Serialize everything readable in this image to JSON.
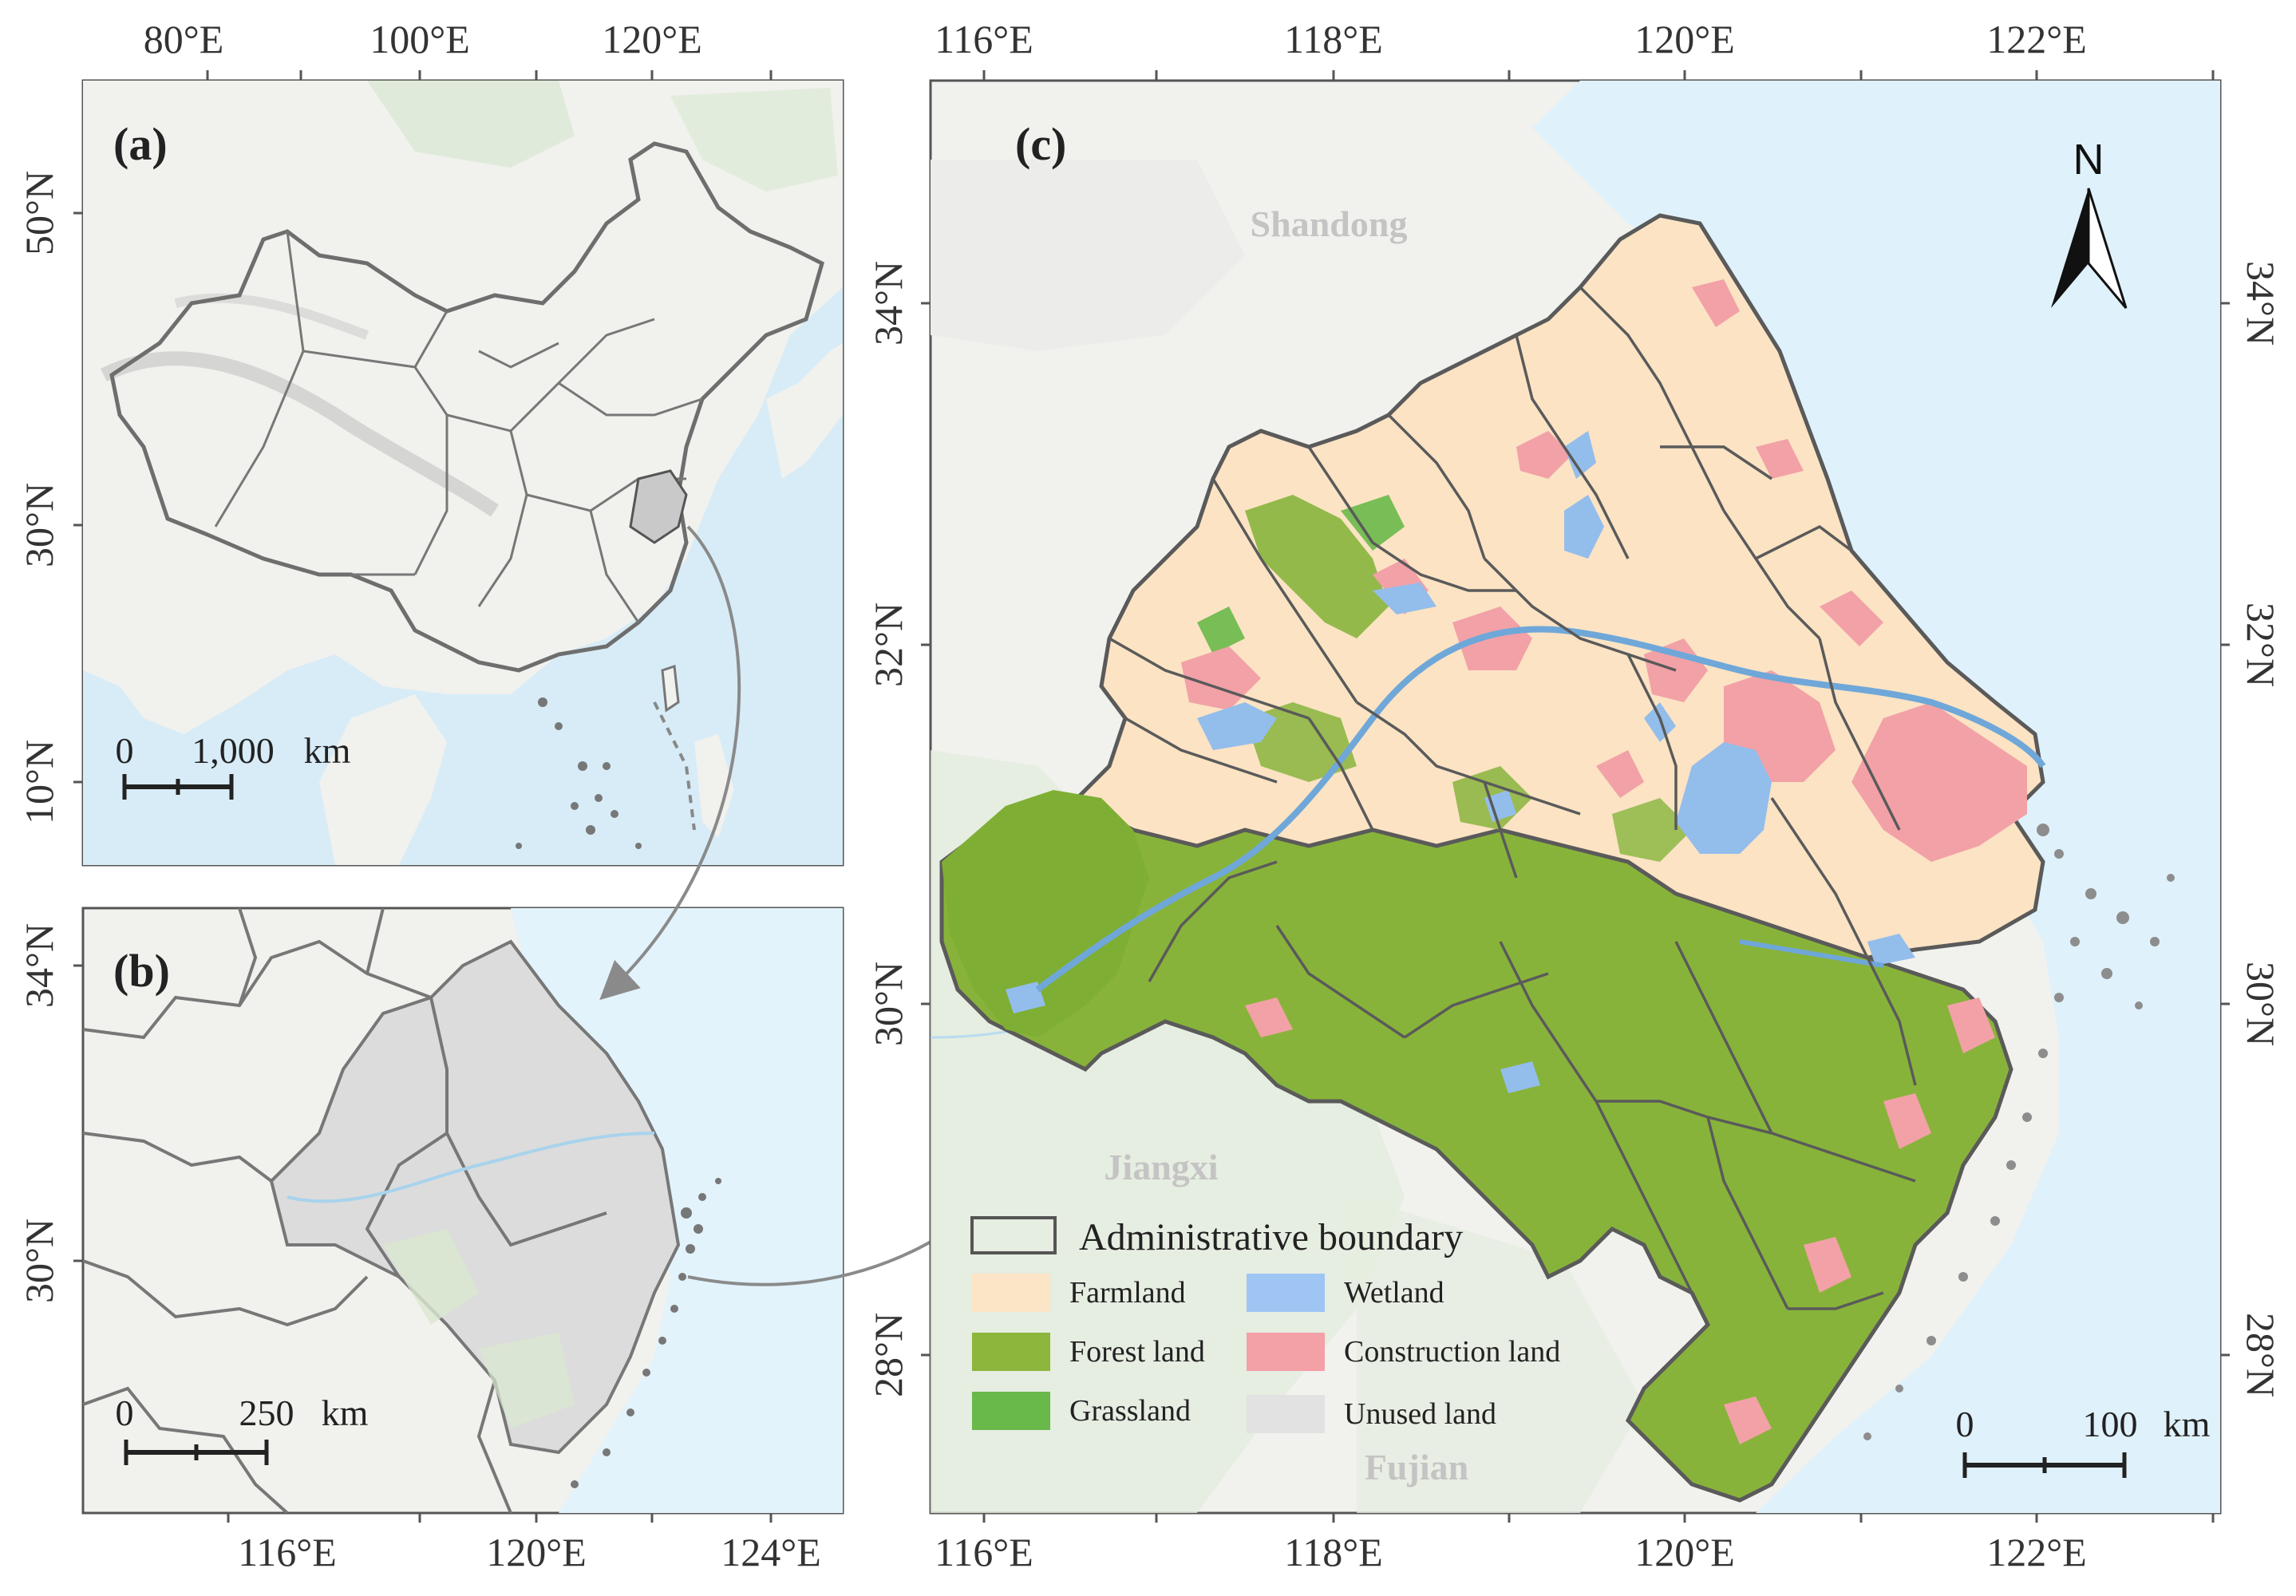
{
  "panel_a": {
    "label": "(a)",
    "top_ticks": [
      "80°E",
      "100°E",
      "120°E"
    ],
    "left_ticks": [
      "50°N",
      "30°N",
      "10°N"
    ],
    "scale": {
      "start": "0",
      "end": "1,000",
      "unit": "km"
    }
  },
  "panel_b": {
    "label": "(b)",
    "bottom_ticks": [
      "116°E",
      "120°E",
      "124°E"
    ],
    "left_ticks": [
      "34°N",
      "30°N"
    ],
    "scale": {
      "start": "0",
      "end": "250",
      "unit": "km"
    }
  },
  "panel_c": {
    "label": "(c)",
    "top_ticks": [
      "116°E",
      "118°E",
      "120°E",
      "122°E"
    ],
    "bottom_ticks": [
      "116°E",
      "118°E",
      "120°E",
      "122°E"
    ],
    "left_ticks": [
      "34°N",
      "32°N",
      "30°N",
      "28°N"
    ],
    "right_ticks": [
      "34°N",
      "32°N",
      "30°N",
      "28°N"
    ],
    "north_arrow": "N",
    "regions": [
      "Shandong",
      "Jiangxi",
      "Fujian"
    ],
    "scale": {
      "start": "0",
      "end": "100",
      "unit": "km"
    }
  },
  "legend": {
    "title": "Administrative boundary",
    "items": [
      {
        "label": "Farmland",
        "color": "#fce5c6"
      },
      {
        "label": "Wetland",
        "color": "#9ec5f4"
      },
      {
        "label": "Forest land",
        "color": "#8cb63c"
      },
      {
        "label": "Construction land",
        "color": "#f3a0a6"
      },
      {
        "label": "Grassland",
        "color": "#69b84a"
      },
      {
        "label": "Unused land",
        "color": "#e2e2e2"
      }
    ]
  },
  "colors": {
    "sea": "#dff1fb",
    "land": "#f2f2ef",
    "highlight": "#d9d9d9",
    "boundary": "#5a5a5a"
  }
}
